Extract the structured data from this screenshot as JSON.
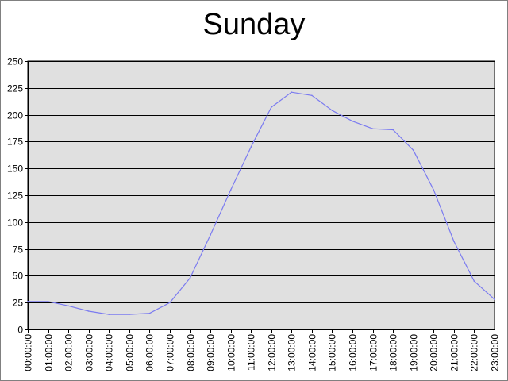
{
  "chart_data": {
    "type": "line",
    "title": "Sunday",
    "xlabel": "",
    "ylabel": "",
    "ylim": [
      0,
      250
    ],
    "yticks": [
      0,
      25,
      50,
      75,
      100,
      125,
      150,
      175,
      200,
      225,
      250
    ],
    "grid": true,
    "legend": "none",
    "categories": [
      "00:00:00",
      "01:00:00",
      "02:00:00",
      "03:00:00",
      "04:00:00",
      "05:00:00",
      "06:00:00",
      "07:00:00",
      "08:00:00",
      "09:00:00",
      "10:00:00",
      "11:00:00",
      "12:00:00",
      "13:00:00",
      "14:00:00",
      "15:00:00",
      "16:00:00",
      "17:00:00",
      "18:00:00",
      "19:00:00",
      "20:00:00",
      "21:00:00",
      "22:00:00",
      "23:00:00"
    ],
    "series": [
      {
        "values": [
          26,
          26,
          22,
          17,
          14,
          14,
          15,
          25,
          48,
          88,
          130,
          170,
          207,
          221,
          218,
          204,
          194,
          187,
          186,
          167,
          130,
          82,
          45,
          28
        ],
        "color": "#7b7bf0"
      }
    ],
    "colors": {
      "plot_background": "#e0e0e0",
      "gridline": "#000000",
      "axis": "#000000"
    }
  }
}
